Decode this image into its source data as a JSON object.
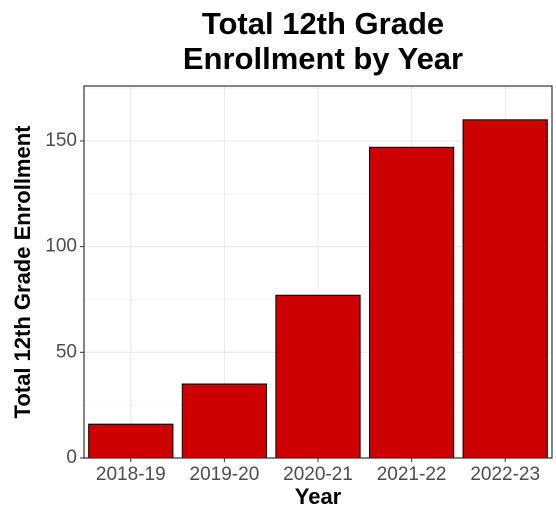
{
  "chart_data": {
    "type": "bar",
    "title": [
      "Total 12th Grade",
      "Enrollment by Year"
    ],
    "x_label": "Year",
    "y_label": "Total 12th Grade Enrollment",
    "categories": [
      "2018-19",
      "2019-20",
      "2020-21",
      "2021-22",
      "2022-23"
    ],
    "values": [
      16,
      35,
      77,
      147,
      160
    ],
    "color": "#cc0000",
    "ylim": [
      0,
      176
    ],
    "yticks": [
      0,
      50,
      100,
      150
    ],
    "y_minor_ticks": [
      25,
      75,
      125,
      175
    ],
    "grid": true
  }
}
